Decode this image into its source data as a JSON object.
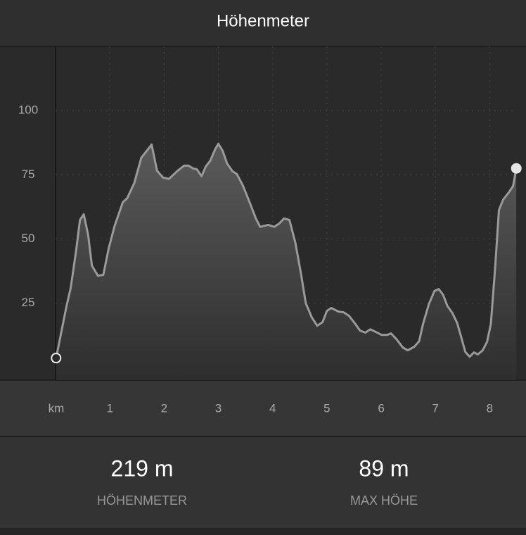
{
  "header": {
    "title": "Höhenmeter"
  },
  "chart_data": {
    "type": "area",
    "x_label": "km",
    "x": [
      0.01,
      0.2,
      0.28,
      0.38,
      0.45,
      0.52,
      0.6,
      0.67,
      0.78,
      0.88,
      0.98,
      1.09,
      1.24,
      1.32,
      1.45,
      1.58,
      1.77,
      1.87,
      1.98,
      2.09,
      2.24,
      2.37,
      2.45,
      2.53,
      2.6,
      2.69,
      2.77,
      2.85,
      2.94,
      3.0,
      3.08,
      3.16,
      3.26,
      3.34,
      3.45,
      3.59,
      3.69,
      3.77,
      3.92,
      4.03,
      4.12,
      4.21,
      4.31,
      4.42,
      4.52,
      4.61,
      4.72,
      4.82,
      4.92,
      5.0,
      5.08,
      5.21,
      5.31,
      5.41,
      5.52,
      5.61,
      5.71,
      5.8,
      5.91,
      6.01,
      6.11,
      6.18,
      6.28,
      6.4,
      6.49,
      6.61,
      6.7,
      6.77,
      6.88,
      6.98,
      7.06,
      7.14,
      7.22,
      7.31,
      7.4,
      7.47,
      7.55,
      7.63,
      7.71,
      7.78,
      7.87,
      7.95,
      8.02,
      8.1,
      8.17,
      8.25,
      8.35,
      8.43,
      8.49
    ],
    "values": [
      3.6,
      23.6,
      31,
      45.6,
      57.4,
      59.6,
      51.6,
      39.6,
      35.7,
      36,
      46.4,
      55.2,
      64.3,
      65.9,
      71.7,
      81.6,
      86.8,
      76.6,
      73.9,
      73.4,
      76.4,
      78.6,
      78.6,
      77.5,
      77.2,
      74.5,
      78.3,
      80.5,
      84.9,
      87.1,
      84.3,
      79.4,
      76.4,
      75.3,
      70.9,
      63.5,
      58,
      54.7,
      55.5,
      54.7,
      56,
      58,
      57.4,
      48.4,
      36.8,
      25,
      19.5,
      16.2,
      17.6,
      22,
      23.1,
      21.7,
      21.4,
      20,
      17,
      14.3,
      13.5,
      14.8,
      13.7,
      12.6,
      12.6,
      13.2,
      11,
      7.7,
      6.6,
      8,
      10.2,
      16.8,
      24.7,
      29.7,
      30.5,
      28.3,
      23.9,
      21.2,
      17.3,
      12.1,
      6,
      4.1,
      5.8,
      5,
      6.6,
      9.9,
      16.8,
      38.7,
      61.3,
      65.4,
      68.1,
      70.6,
      77.5
    ],
    "color": "#9a9a9a",
    "xlim": [
      0,
      8.5
    ],
    "xticks": [
      1,
      2,
      3,
      4,
      5,
      6,
      7,
      8
    ],
    "ylim": [
      -5,
      125
    ],
    "yticks": [
      25,
      50,
      75,
      100
    ],
    "grid": true
  },
  "stats": [
    {
      "value": "219 m",
      "label": "HÖHENMETER"
    },
    {
      "value": "89 m",
      "label": "MAX HÖHE"
    }
  ]
}
